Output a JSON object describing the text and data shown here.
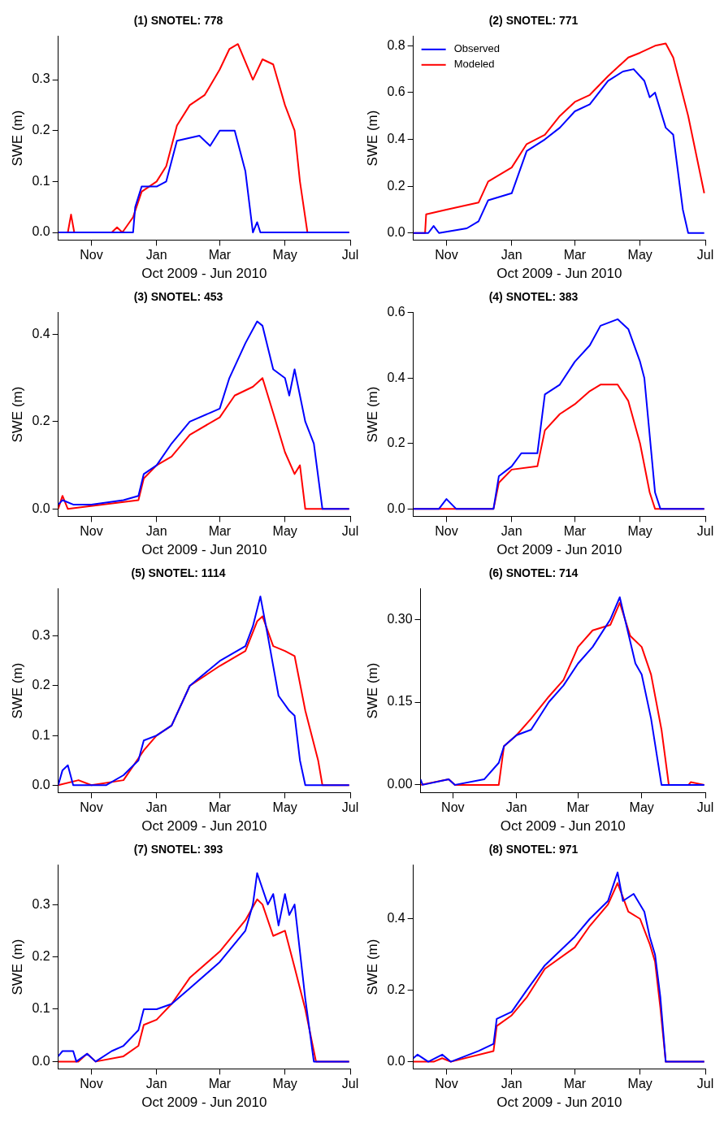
{
  "chart_data": [
    {
      "type": "line",
      "title": "(1) SNOTEL: 778",
      "xlabel": "Oct 2009 - Jun 2010",
      "ylabel": "SWE (m)",
      "xlim": [
        "2009-10-01",
        "2010-07-01"
      ],
      "xticks": [
        {
          "value": "2009-11-01",
          "label": "Nov"
        },
        {
          "value": "2010-01-01",
          "label": "Jan"
        },
        {
          "value": "2010-03-01",
          "label": "Mar"
        },
        {
          "value": "2010-05-01",
          "label": "May"
        },
        {
          "value": "2010-07-01",
          "label": "Jul"
        }
      ],
      "ylim": [
        -0.015,
        0.385
      ],
      "yticks": [
        {
          "value": 0,
          "label": "0.0"
        },
        0.1,
        0.2,
        0.3
      ],
      "grid": false,
      "legend": false,
      "marker": "none",
      "line_style": "solid",
      "series": [
        {
          "color": "#0000ff",
          "x": [
            "2009-10-01",
            "2009-12-10",
            "2009-12-12",
            "2009-12-18",
            "2010-01-01",
            "2010-01-10",
            "2010-01-20",
            "2010-02-10",
            "2010-02-20",
            "2010-03-01",
            "2010-03-15",
            "2010-03-25",
            "2010-04-01",
            "2010-04-05",
            "2010-04-08",
            "2010-06-30"
          ],
          "values": [
            0,
            0,
            0.05,
            0.09,
            0.09,
            0.1,
            0.18,
            0.19,
            0.17,
            0.2,
            0.2,
            0.12,
            0,
            0.02,
            0,
            0
          ]
        },
        {
          "color": "#ff0000",
          "x": [
            "2009-10-01",
            "2009-10-10",
            "2009-10-13",
            "2009-10-16",
            "2009-11-20",
            "2009-11-25",
            "2009-11-30",
            "2009-12-10",
            "2009-12-18",
            "2010-01-01",
            "2010-01-10",
            "2010-01-20",
            "2010-02-01",
            "2010-02-15",
            "2010-03-01",
            "2010-03-10",
            "2010-03-18",
            "2010-04-01",
            "2010-04-10",
            "2010-04-20",
            "2010-05-01",
            "2010-05-10",
            "2010-05-15",
            "2010-05-22",
            "2010-06-30"
          ],
          "values": [
            0,
            0,
            0.035,
            0,
            0,
            0.01,
            0,
            0.03,
            0.08,
            0.1,
            0.13,
            0.21,
            0.25,
            0.27,
            0.32,
            0.36,
            0.37,
            0.3,
            0.34,
            0.33,
            0.25,
            0.2,
            0.1,
            0,
            0
          ]
        }
      ]
    },
    {
      "type": "line",
      "title": "(2) SNOTEL: 771",
      "xlabel": "Oct 2009 - Jun 2010",
      "ylabel": "SWE (m)",
      "xlim": [
        "2009-10-01",
        "2010-07-01"
      ],
      "xticks": [
        {
          "value": "2009-11-01",
          "label": "Nov"
        },
        {
          "value": "2010-01-01",
          "label": "Jan"
        },
        {
          "value": "2010-03-01",
          "label": "Mar"
        },
        {
          "value": "2010-05-01",
          "label": "May"
        },
        {
          "value": "2010-07-01",
          "label": "Jul"
        }
      ],
      "ylim": [
        -0.03,
        0.84
      ],
      "yticks": [
        {
          "value": 0,
          "label": "0.0"
        },
        0.2,
        0.4,
        0.6,
        0.8
      ],
      "grid": false,
      "legend": "top left",
      "marker": "none",
      "line_style": "solid",
      "series": [
        {
          "name": "Observed",
          "color": "#0000ff",
          "x": [
            "2009-10-01",
            "2009-10-15",
            "2009-10-20",
            "2009-10-25",
            "2009-11-20",
            "2009-12-01",
            "2009-12-10",
            "2010-01-01",
            "2010-01-15",
            "2010-02-01",
            "2010-02-15",
            "2010-03-01",
            "2010-03-15",
            "2010-04-01",
            "2010-04-15",
            "2010-04-25",
            "2010-05-05",
            "2010-05-10",
            "2010-05-15",
            "2010-05-25",
            "2010-06-01",
            "2010-06-10",
            "2010-06-15",
            "2010-06-30"
          ],
          "values": [
            0,
            0,
            0.03,
            0,
            0.02,
            0.05,
            0.14,
            0.17,
            0.35,
            0.4,
            0.45,
            0.52,
            0.55,
            0.65,
            0.69,
            0.7,
            0.65,
            0.58,
            0.6,
            0.45,
            0.42,
            0.1,
            0,
            0
          ]
        },
        {
          "name": "Modeled",
          "color": "#ff0000",
          "x": [
            "2009-10-01",
            "2009-10-12",
            "2009-10-13",
            "2009-11-01",
            "2009-12-01",
            "2009-12-10",
            "2010-01-01",
            "2010-01-15",
            "2010-02-01",
            "2010-02-15",
            "2010-03-01",
            "2010-03-15",
            "2010-04-01",
            "2010-04-20",
            "2010-05-01",
            "2010-05-15",
            "2010-05-25",
            "2010-06-01",
            "2010-06-15",
            "2010-06-30"
          ],
          "values": [
            0,
            0,
            0.08,
            0.1,
            0.13,
            0.22,
            0.28,
            0.38,
            0.42,
            0.5,
            0.56,
            0.59,
            0.67,
            0.75,
            0.77,
            0.8,
            0.81,
            0.75,
            0.5,
            0.17
          ]
        }
      ]
    },
    {
      "type": "line",
      "title": "(3) SNOTEL: 453",
      "xlabel": "Oct 2009 - Jun 2010",
      "ylabel": "SWE (m)",
      "xlim": [
        "2009-10-01",
        "2010-07-01"
      ],
      "xticks": [
        {
          "value": "2009-11-01",
          "label": "Nov"
        },
        {
          "value": "2010-01-01",
          "label": "Jan"
        },
        {
          "value": "2010-03-01",
          "label": "Mar"
        },
        {
          "value": "2010-05-01",
          "label": "May"
        },
        {
          "value": "2010-07-01",
          "label": "Jul"
        }
      ],
      "ylim": [
        -0.017,
        0.45
      ],
      "yticks": [
        {
          "value": 0,
          "label": "0.0"
        },
        0.2,
        0.4
      ],
      "grid": false,
      "legend": false,
      "marker": "none",
      "line_style": "solid",
      "series": [
        {
          "color": "#0000ff",
          "x": [
            "2009-10-01",
            "2009-10-05",
            "2009-10-15",
            "2009-11-01",
            "2009-12-01",
            "2009-12-15",
            "2009-12-20",
            "2010-01-01",
            "2010-01-15",
            "2010-02-01",
            "2010-03-01",
            "2010-03-10",
            "2010-03-25",
            "2010-04-05",
            "2010-04-10",
            "2010-04-20",
            "2010-05-01",
            "2010-05-05",
            "2010-05-10",
            "2010-05-20",
            "2010-05-28",
            "2010-06-05",
            "2010-06-30"
          ],
          "values": [
            0.01,
            0.02,
            0.01,
            0.01,
            0.02,
            0.03,
            0.08,
            0.1,
            0.15,
            0.2,
            0.23,
            0.3,
            0.38,
            0.43,
            0.42,
            0.32,
            0.3,
            0.26,
            0.32,
            0.2,
            0.15,
            0,
            0
          ]
        },
        {
          "color": "#ff0000",
          "x": [
            "2009-10-01",
            "2009-10-05",
            "2009-10-10",
            "2009-12-15",
            "2009-12-20",
            "2010-01-01",
            "2010-01-15",
            "2010-02-01",
            "2010-03-01",
            "2010-03-15",
            "2010-04-01",
            "2010-04-10",
            "2010-04-20",
            "2010-05-01",
            "2010-05-10",
            "2010-05-15",
            "2010-05-20",
            "2010-06-30"
          ],
          "values": [
            0,
            0.03,
            0,
            0.02,
            0.07,
            0.1,
            0.12,
            0.17,
            0.21,
            0.26,
            0.28,
            0.3,
            0.22,
            0.13,
            0.08,
            0.1,
            0,
            0
          ]
        }
      ]
    },
    {
      "type": "line",
      "title": "(4) SNOTEL: 383",
      "xlabel": "Oct 2009 - Jun 2010",
      "ylabel": "SWE (m)",
      "xlim": [
        "2009-10-01",
        "2010-07-01"
      ],
      "xticks": [
        {
          "value": "2009-11-01",
          "label": "Nov"
        },
        {
          "value": "2010-01-01",
          "label": "Jan"
        },
        {
          "value": "2010-03-01",
          "label": "Mar"
        },
        {
          "value": "2010-05-01",
          "label": "May"
        },
        {
          "value": "2010-07-01",
          "label": "Jul"
        }
      ],
      "ylim": [
        -0.023,
        0.6
      ],
      "yticks": [
        {
          "value": 0,
          "label": "0.0"
        },
        0.2,
        0.4,
        0.6
      ],
      "grid": false,
      "legend": false,
      "marker": "none",
      "line_style": "solid",
      "series": [
        {
          "color": "#0000ff",
          "x": [
            "2009-10-01",
            "2009-10-25",
            "2009-11-01",
            "2009-11-10",
            "2009-12-15",
            "2009-12-20",
            "2010-01-01",
            "2010-01-10",
            "2010-01-25",
            "2010-02-01",
            "2010-02-15",
            "2010-03-01",
            "2010-03-15",
            "2010-03-25",
            "2010-04-10",
            "2010-04-20",
            "2010-05-01",
            "2010-05-05",
            "2010-05-15",
            "2010-05-20",
            "2010-06-30"
          ],
          "values": [
            0,
            0,
            0.03,
            0,
            0,
            0.1,
            0.13,
            0.17,
            0.17,
            0.35,
            0.38,
            0.45,
            0.5,
            0.56,
            0.58,
            0.55,
            0.45,
            0.4,
            0.05,
            0,
            0
          ]
        },
        {
          "color": "#ff0000",
          "x": [
            "2009-10-01",
            "2009-12-15",
            "2009-12-20",
            "2010-01-01",
            "2010-01-25",
            "2010-02-01",
            "2010-02-15",
            "2010-03-01",
            "2010-03-15",
            "2010-03-25",
            "2010-04-10",
            "2010-04-20",
            "2010-05-01",
            "2010-05-10",
            "2010-05-15",
            "2010-06-30"
          ],
          "values": [
            0,
            0,
            0.08,
            0.12,
            0.13,
            0.24,
            0.29,
            0.32,
            0.36,
            0.38,
            0.38,
            0.33,
            0.2,
            0.05,
            0,
            0
          ]
        }
      ]
    },
    {
      "type": "line",
      "title": "(5) SNOTEL: 1114",
      "xlabel": "Oct 2009 - Jun 2010",
      "ylabel": "SWE (m)",
      "xlim": [
        "2009-10-01",
        "2010-07-01"
      ],
      "xticks": [
        {
          "value": "2009-11-01",
          "label": "Nov"
        },
        {
          "value": "2010-01-01",
          "label": "Jan"
        },
        {
          "value": "2010-03-01",
          "label": "Mar"
        },
        {
          "value": "2010-05-01",
          "label": "May"
        },
        {
          "value": "2010-07-01",
          "label": "Jul"
        }
      ],
      "ylim": [
        -0.015,
        0.395
      ],
      "yticks": [
        {
          "value": 0,
          "label": "0.0"
        },
        0.1,
        0.2,
        0.3
      ],
      "grid": false,
      "legend": false,
      "marker": "none",
      "line_style": "solid",
      "series": [
        {
          "color": "#0000ff",
          "x": [
            "2009-10-01",
            "2009-10-05",
            "2009-10-10",
            "2009-10-15",
            "2009-11-15",
            "2009-12-01",
            "2009-12-15",
            "2009-12-20",
            "2010-01-01",
            "2010-01-15",
            "2010-02-01",
            "2010-03-01",
            "2010-03-25",
            "2010-04-01",
            "2010-04-08",
            "2010-04-15",
            "2010-04-25",
            "2010-05-05",
            "2010-05-10",
            "2010-05-15",
            "2010-05-20",
            "2010-06-30"
          ],
          "values": [
            0,
            0.03,
            0.04,
            0,
            0,
            0.02,
            0.05,
            0.09,
            0.1,
            0.12,
            0.2,
            0.25,
            0.28,
            0.32,
            0.38,
            0.3,
            0.18,
            0.15,
            0.14,
            0.05,
            0,
            0
          ]
        },
        {
          "color": "#ff0000",
          "x": [
            "2009-10-01",
            "2009-10-20",
            "2009-11-01",
            "2009-12-01",
            "2009-12-20",
            "2010-01-01",
            "2010-01-15",
            "2010-02-01",
            "2010-03-01",
            "2010-03-25",
            "2010-04-05",
            "2010-04-10",
            "2010-04-20",
            "2010-05-01",
            "2010-05-10",
            "2010-05-20",
            "2010-06-01",
            "2010-06-05",
            "2010-06-30"
          ],
          "values": [
            0,
            0.01,
            0,
            0.01,
            0.07,
            0.1,
            0.12,
            0.2,
            0.24,
            0.27,
            0.33,
            0.34,
            0.28,
            0.27,
            0.26,
            0.15,
            0.05,
            0,
            0
          ]
        }
      ]
    },
    {
      "type": "line",
      "title": "(6) SNOTEL: 714",
      "xlabel": "Oct 2009 - Jun 2010",
      "ylabel": "SWE (m)",
      "xlim": [
        "2009-10-01",
        "2010-07-01"
      ],
      "xticks": [
        {
          "value": "2009-11-01",
          "label": "Nov"
        },
        {
          "value": "2010-01-01",
          "label": "Jan"
        },
        {
          "value": "2010-03-01",
          "label": "Mar"
        },
        {
          "value": "2010-05-01",
          "label": "May"
        },
        {
          "value": "2010-07-01",
          "label": "Jul"
        }
      ],
      "ylim": [
        -0.014,
        0.355
      ],
      "yticks": [
        {
          "value": 0,
          "label": "0.00"
        },
        {
          "value": 0.15,
          "label": "0.15"
        },
        {
          "value": 0.3,
          "label": "0.30"
        }
      ],
      "grid": false,
      "legend": false,
      "marker": "none",
      "line_style": "solid",
      "series": [
        {
          "color": "#0000ff",
          "x": [
            "2009-10-01",
            "2009-10-03",
            "2009-10-28",
            "2009-11-03",
            "2009-12-01",
            "2009-12-15",
            "2009-12-20",
            "2010-01-01",
            "2010-01-15",
            "2010-02-01",
            "2010-02-15",
            "2010-03-01",
            "2010-03-15",
            "2010-04-01",
            "2010-04-10",
            "2010-04-15",
            "2010-04-25",
            "2010-05-01",
            "2010-05-10",
            "2010-05-20",
            "2010-06-30"
          ],
          "values": [
            0.01,
            0,
            0.01,
            0,
            0.01,
            0.04,
            0.07,
            0.09,
            0.1,
            0.15,
            0.18,
            0.22,
            0.25,
            0.3,
            0.34,
            0.3,
            0.22,
            0.2,
            0.12,
            0,
            0
          ]
        },
        {
          "color": "#ff0000",
          "x": [
            "2009-10-01",
            "2009-10-28",
            "2009-11-03",
            "2009-12-15",
            "2009-12-20",
            "2010-01-01",
            "2010-01-15",
            "2010-02-01",
            "2010-02-15",
            "2010-03-01",
            "2010-03-15",
            "2010-04-01",
            "2010-04-10",
            "2010-04-20",
            "2010-05-01",
            "2010-05-10",
            "2010-05-20",
            "2010-05-27",
            "2010-06-15",
            "2010-06-17",
            "2010-06-30"
          ],
          "values": [
            0,
            0.01,
            0,
            0,
            0.07,
            0.09,
            0.12,
            0.16,
            0.19,
            0.25,
            0.28,
            0.29,
            0.33,
            0.27,
            0.25,
            0.2,
            0.1,
            0,
            0,
            0.005,
            0
          ]
        }
      ]
    },
    {
      "type": "line",
      "title": "(7) SNOTEL: 393",
      "xlabel": "Oct 2009 - Jun 2010",
      "ylabel": "SWE (m)",
      "xlim": [
        "2009-10-01",
        "2010-07-01"
      ],
      "xticks": [
        {
          "value": "2009-11-01",
          "label": "Nov"
        },
        {
          "value": "2010-01-01",
          "label": "Jan"
        },
        {
          "value": "2010-03-01",
          "label": "Mar"
        },
        {
          "value": "2010-05-01",
          "label": "May"
        },
        {
          "value": "2010-07-01",
          "label": "Jul"
        }
      ],
      "ylim": [
        -0.014,
        0.375
      ],
      "yticks": [
        {
          "value": 0,
          "label": "0.0"
        },
        0.1,
        0.2,
        0.3
      ],
      "grid": false,
      "legend": false,
      "marker": "none",
      "line_style": "solid",
      "series": [
        {
          "color": "#0000ff",
          "x": [
            "2009-10-01",
            "2009-10-05",
            "2009-10-15",
            "2009-10-18",
            "2009-10-28",
            "2009-11-05",
            "2009-11-20",
            "2009-12-01",
            "2009-12-15",
            "2009-12-20",
            "2010-01-01",
            "2010-01-15",
            "2010-02-01",
            "2010-03-01",
            "2010-03-25",
            "2010-04-01",
            "2010-04-05",
            "2010-04-15",
            "2010-04-20",
            "2010-04-25",
            "2010-05-01",
            "2010-05-05",
            "2010-05-10",
            "2010-05-20",
            "2010-05-28",
            "2010-06-30"
          ],
          "values": [
            0.01,
            0.02,
            0.02,
            0,
            0.015,
            0,
            0.02,
            0.03,
            0.06,
            0.1,
            0.1,
            0.11,
            0.14,
            0.19,
            0.25,
            0.3,
            0.36,
            0.3,
            0.32,
            0.26,
            0.32,
            0.28,
            0.3,
            0.12,
            0,
            0
          ]
        },
        {
          "color": "#ff0000",
          "x": [
            "2009-10-01",
            "2009-10-20",
            "2009-10-28",
            "2009-11-05",
            "2009-12-01",
            "2009-12-15",
            "2009-12-20",
            "2010-01-01",
            "2010-01-15",
            "2010-02-01",
            "2010-03-01",
            "2010-03-25",
            "2010-04-05",
            "2010-04-10",
            "2010-04-20",
            "2010-05-01",
            "2010-05-10",
            "2010-05-20",
            "2010-05-30",
            "2010-06-30"
          ],
          "values": [
            0,
            0,
            0.015,
            0,
            0.01,
            0.03,
            0.07,
            0.08,
            0.11,
            0.16,
            0.21,
            0.27,
            0.31,
            0.3,
            0.24,
            0.25,
            0.18,
            0.1,
            0,
            0
          ]
        }
      ]
    },
    {
      "type": "line",
      "title": "(8) SNOTEL: 971",
      "xlabel": "Oct 2009 - Jun 2010",
      "ylabel": "SWE (m)",
      "xlim": [
        "2009-10-01",
        "2010-07-01"
      ],
      "xticks": [
        {
          "value": "2009-11-01",
          "label": "Nov"
        },
        {
          "value": "2010-01-01",
          "label": "Jan"
        },
        {
          "value": "2010-03-01",
          "label": "Mar"
        },
        {
          "value": "2010-05-01",
          "label": "May"
        },
        {
          "value": "2010-07-01",
          "label": "Jul"
        }
      ],
      "ylim": [
        -0.02,
        0.55
      ],
      "yticks": [
        {
          "value": 0,
          "label": "0.0"
        },
        0.2,
        0.4
      ],
      "grid": false,
      "legend": false,
      "marker": "none",
      "line_style": "solid",
      "series": [
        {
          "color": "#0000ff",
          "x": [
            "2009-10-01",
            "2009-10-05",
            "2009-10-15",
            "2009-10-28",
            "2009-11-05",
            "2009-12-01",
            "2009-12-15",
            "2009-12-18",
            "2010-01-01",
            "2010-01-15",
            "2010-02-01",
            "2010-03-01",
            "2010-03-15",
            "2010-04-01",
            "2010-04-10",
            "2010-04-15",
            "2010-04-25",
            "2010-05-05",
            "2010-05-10",
            "2010-05-15",
            "2010-05-20",
            "2010-05-25",
            "2010-06-30"
          ],
          "values": [
            0.01,
            0.02,
            0,
            0.02,
            0,
            0.03,
            0.05,
            0.12,
            0.14,
            0.2,
            0.27,
            0.35,
            0.4,
            0.45,
            0.53,
            0.45,
            0.47,
            0.42,
            0.35,
            0.3,
            0.18,
            0,
            0
          ]
        },
        {
          "color": "#ff0000",
          "x": [
            "2009-10-01",
            "2009-10-20",
            "2009-10-28",
            "2009-11-05",
            "2009-12-15",
            "2009-12-18",
            "2010-01-01",
            "2010-01-15",
            "2010-02-01",
            "2010-03-01",
            "2010-03-15",
            "2010-04-01",
            "2010-04-10",
            "2010-04-20",
            "2010-05-01",
            "2010-05-10",
            "2010-05-15",
            "2010-05-20",
            "2010-05-25",
            "2010-06-30"
          ],
          "values": [
            0,
            0,
            0.01,
            0,
            0.03,
            0.1,
            0.13,
            0.18,
            0.26,
            0.32,
            0.38,
            0.44,
            0.5,
            0.42,
            0.4,
            0.33,
            0.28,
            0.15,
            0,
            0
          ]
        }
      ]
    }
  ]
}
